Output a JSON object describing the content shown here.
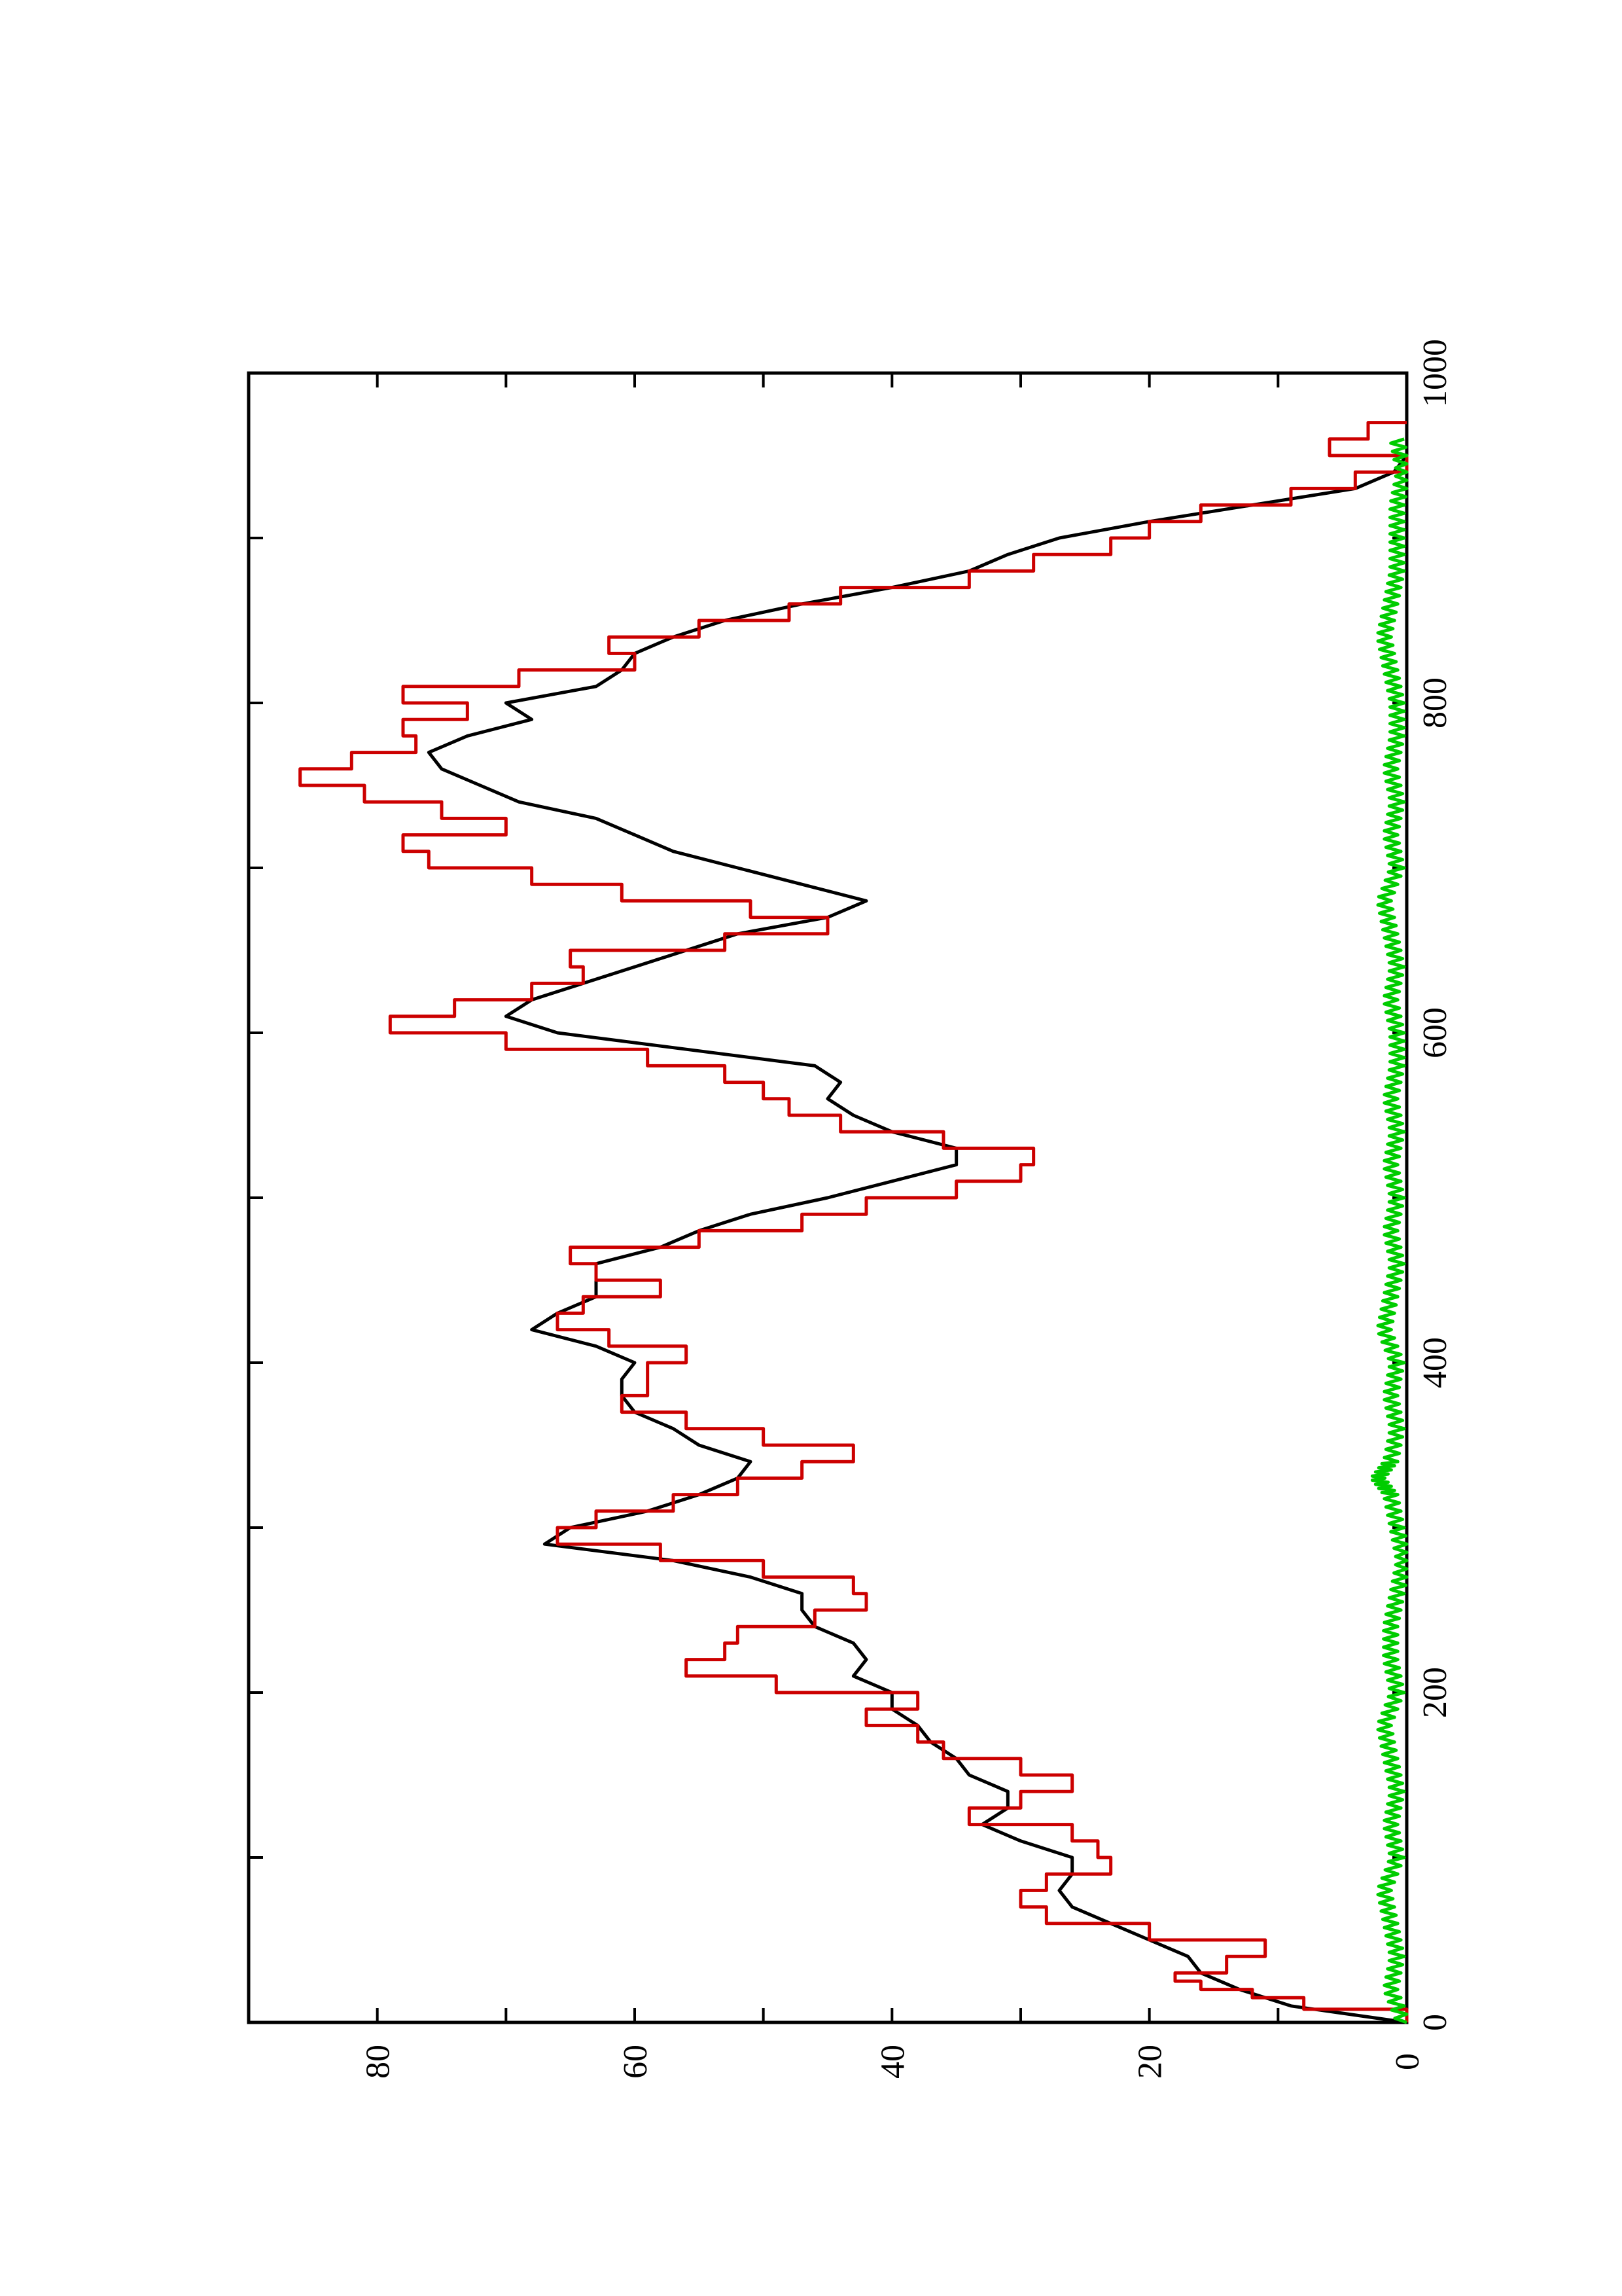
{
  "chart_data": {
    "type": "line",
    "orientation": "rotated 90 degrees counter-clockwise (x axis runs vertically)",
    "title": "",
    "xlabel": "",
    "ylabel": "",
    "xlim": [
      0,
      1000
    ],
    "ylim": [
      0,
      90
    ],
    "x_ticks": [
      "0",
      "200",
      "400",
      "600",
      "800",
      "1000"
    ],
    "y_ticks": [
      "0",
      "20",
      "40",
      "60",
      "80"
    ],
    "grid": false,
    "legend": "none",
    "series": [
      {
        "color": "#000000",
        "style": "smooth",
        "points": [
          [
            0,
            0
          ],
          [
            10,
            9
          ],
          [
            20,
            13
          ],
          [
            30,
            16
          ],
          [
            40,
            17
          ],
          [
            50,
            20
          ],
          [
            60,
            23
          ],
          [
            70,
            26
          ],
          [
            80,
            27
          ],
          [
            90,
            26
          ],
          [
            100,
            26
          ],
          [
            110,
            30
          ],
          [
            120,
            33
          ],
          [
            130,
            31
          ],
          [
            140,
            31
          ],
          [
            150,
            34
          ],
          [
            160,
            35
          ],
          [
            170,
            37
          ],
          [
            180,
            38
          ],
          [
            190,
            40
          ],
          [
            200,
            40
          ],
          [
            210,
            43
          ],
          [
            220,
            42
          ],
          [
            230,
            43
          ],
          [
            240,
            46
          ],
          [
            250,
            47
          ],
          [
            260,
            47
          ],
          [
            270,
            51
          ],
          [
            280,
            57
          ],
          [
            290,
            67
          ],
          [
            300,
            65
          ],
          [
            310,
            59
          ],
          [
            320,
            55
          ],
          [
            330,
            52
          ],
          [
            340,
            51
          ],
          [
            350,
            55
          ],
          [
            360,
            57
          ],
          [
            370,
            60
          ],
          [
            380,
            61
          ],
          [
            390,
            61
          ],
          [
            400,
            60
          ],
          [
            410,
            63
          ],
          [
            420,
            68
          ],
          [
            430,
            66
          ],
          [
            440,
            63
          ],
          [
            450,
            63
          ],
          [
            460,
            63
          ],
          [
            470,
            58
          ],
          [
            480,
            55
          ],
          [
            490,
            51
          ],
          [
            500,
            45
          ],
          [
            510,
            40
          ],
          [
            520,
            35
          ],
          [
            530,
            35
          ],
          [
            540,
            40
          ],
          [
            550,
            43
          ],
          [
            560,
            45
          ],
          [
            570,
            44
          ],
          [
            580,
            46
          ],
          [
            590,
            56
          ],
          [
            600,
            66
          ],
          [
            610,
            70
          ],
          [
            620,
            68
          ],
          [
            630,
            64
          ],
          [
            640,
            60
          ],
          [
            650,
            56
          ],
          [
            660,
            52
          ],
          [
            670,
            45
          ],
          [
            680,
            42
          ],
          [
            690,
            47
          ],
          [
            700,
            52
          ],
          [
            710,
            57
          ],
          [
            720,
            60
          ],
          [
            730,
            63
          ],
          [
            740,
            69
          ],
          [
            750,
            72
          ],
          [
            760,
            75
          ],
          [
            770,
            76
          ],
          [
            780,
            73
          ],
          [
            790,
            68
          ],
          [
            800,
            70
          ],
          [
            810,
            63
          ],
          [
            820,
            61
          ],
          [
            830,
            60
          ],
          [
            840,
            57
          ],
          [
            850,
            53
          ],
          [
            860,
            47
          ],
          [
            870,
            40
          ],
          [
            880,
            34
          ],
          [
            890,
            31
          ],
          [
            900,
            27
          ],
          [
            910,
            20
          ],
          [
            920,
            12
          ],
          [
            930,
            4
          ],
          [
            940,
            1
          ],
          [
            950,
            0
          ],
          [
            960,
            0
          ]
        ]
      },
      {
        "color": "#cc0000",
        "style": "stepped",
        "points": [
          [
            0,
            0
          ],
          [
            8,
            8
          ],
          [
            15,
            12
          ],
          [
            20,
            16
          ],
          [
            25,
            18
          ],
          [
            30,
            14
          ],
          [
            40,
            11
          ],
          [
            50,
            20
          ],
          [
            60,
            28
          ],
          [
            70,
            30
          ],
          [
            80,
            28
          ],
          [
            90,
            23
          ],
          [
            100,
            24
          ],
          [
            110,
            26
          ],
          [
            120,
            34
          ],
          [
            130,
            30
          ],
          [
            140,
            26
          ],
          [
            150,
            30
          ],
          [
            160,
            36
          ],
          [
            170,
            38
          ],
          [
            180,
            42
          ],
          [
            190,
            38
          ],
          [
            200,
            49
          ],
          [
            210,
            56
          ],
          [
            220,
            53
          ],
          [
            230,
            52
          ],
          [
            240,
            46
          ],
          [
            250,
            42
          ],
          [
            260,
            43
          ],
          [
            270,
            50
          ],
          [
            280,
            58
          ],
          [
            290,
            66
          ],
          [
            300,
            63
          ],
          [
            310,
            57
          ],
          [
            320,
            52
          ],
          [
            330,
            47
          ],
          [
            340,
            43
          ],
          [
            350,
            50
          ],
          [
            360,
            56
          ],
          [
            370,
            61
          ],
          [
            380,
            59
          ],
          [
            390,
            59
          ],
          [
            400,
            56
          ],
          [
            410,
            62
          ],
          [
            420,
            66
          ],
          [
            430,
            64
          ],
          [
            440,
            58
          ],
          [
            450,
            63
          ],
          [
            460,
            65
          ],
          [
            470,
            55
          ],
          [
            480,
            47
          ],
          [
            490,
            42
          ],
          [
            500,
            35
          ],
          [
            510,
            30
          ],
          [
            520,
            29
          ],
          [
            530,
            36
          ],
          [
            540,
            44
          ],
          [
            550,
            48
          ],
          [
            560,
            50
          ],
          [
            570,
            53
          ],
          [
            580,
            59
          ],
          [
            590,
            70
          ],
          [
            600,
            79
          ],
          [
            610,
            74
          ],
          [
            620,
            68
          ],
          [
            630,
            64
          ],
          [
            640,
            65
          ],
          [
            650,
            53
          ],
          [
            660,
            45
          ],
          [
            670,
            51
          ],
          [
            680,
            61
          ],
          [
            690,
            68
          ],
          [
            700,
            76
          ],
          [
            710,
            78
          ],
          [
            720,
            70
          ],
          [
            730,
            75
          ],
          [
            740,
            81
          ],
          [
            750,
            86
          ],
          [
            760,
            82
          ],
          [
            770,
            77
          ],
          [
            780,
            78
          ],
          [
            790,
            73
          ],
          [
            800,
            78
          ],
          [
            810,
            69
          ],
          [
            820,
            60
          ],
          [
            830,
            62
          ],
          [
            840,
            55
          ],
          [
            850,
            48
          ],
          [
            860,
            44
          ],
          [
            870,
            34
          ],
          [
            880,
            29
          ],
          [
            890,
            23
          ],
          [
            900,
            20
          ],
          [
            910,
            16
          ],
          [
            920,
            9
          ],
          [
            930,
            4
          ],
          [
            940,
            0
          ],
          [
            950,
            6
          ],
          [
            960,
            3
          ],
          [
            970,
            0
          ]
        ]
      },
      {
        "color": "#00cc00",
        "style": "noisy",
        "points": [
          [
            0,
            0
          ],
          [
            20,
            1
          ],
          [
            40,
            0.5
          ],
          [
            60,
            1
          ],
          [
            80,
            1.5
          ],
          [
            100,
            0.5
          ],
          [
            120,
            1
          ],
          [
            140,
            0.5
          ],
          [
            160,
            1
          ],
          [
            180,
            1.5
          ],
          [
            200,
            0.5
          ],
          [
            220,
            1
          ],
          [
            240,
            1
          ],
          [
            260,
            0.5
          ],
          [
            280,
            0
          ],
          [
            300,
            0.5
          ],
          [
            320,
            1
          ],
          [
            330,
            2
          ],
          [
            340,
            1
          ],
          [
            360,
            0.5
          ],
          [
            380,
            1
          ],
          [
            400,
            0.5
          ],
          [
            420,
            1.5
          ],
          [
            440,
            1
          ],
          [
            460,
            0.5
          ],
          [
            480,
            1
          ],
          [
            500,
            0.5
          ],
          [
            520,
            1
          ],
          [
            540,
            0.5
          ],
          [
            560,
            1
          ],
          [
            580,
            0.5
          ],
          [
            600,
            0.5
          ],
          [
            620,
            1
          ],
          [
            640,
            0.5
          ],
          [
            660,
            1
          ],
          [
            680,
            1.5
          ],
          [
            700,
            0.5
          ],
          [
            720,
            1
          ],
          [
            740,
            0.5
          ],
          [
            760,
            1
          ],
          [
            780,
            0.5
          ],
          [
            800,
            0.5
          ],
          [
            820,
            1
          ],
          [
            840,
            1.5
          ],
          [
            860,
            1
          ],
          [
            880,
            0.5
          ],
          [
            900,
            0.5
          ],
          [
            920,
            0.5
          ],
          [
            940,
            0
          ],
          [
            960,
            0.5
          ]
        ]
      }
    ]
  }
}
